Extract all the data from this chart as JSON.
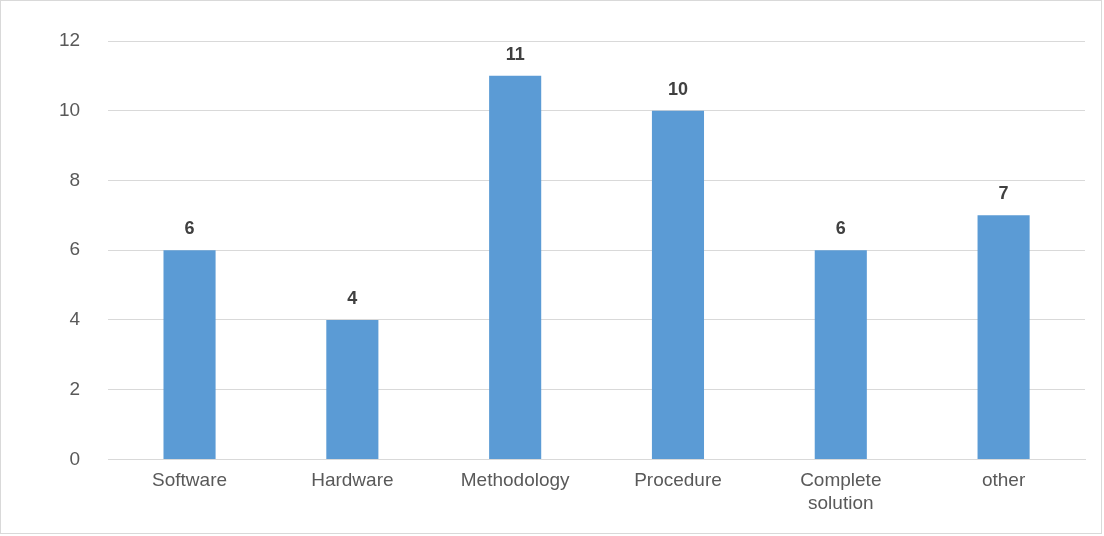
{
  "chart_data": {
    "type": "bar",
    "categories": [
      "Software",
      "Hardware",
      "Methodology",
      "Procedure",
      "Complete solution",
      "other"
    ],
    "values": [
      6,
      4,
      11,
      10,
      6,
      7
    ],
    "color": "#5b9bd5",
    "ylim": [
      0,
      12
    ],
    "yticks": [
      0,
      2,
      4,
      6,
      8,
      10,
      12
    ],
    "grid": "y",
    "legend": false,
    "data_labels": true
  }
}
